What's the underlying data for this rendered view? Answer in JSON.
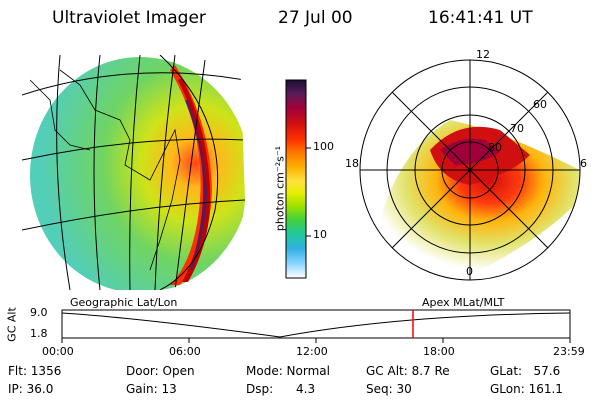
{
  "header": {
    "instrument": "Ultraviolet Imager",
    "date": "27 Jul 00",
    "time": "16:41:41 UT"
  },
  "colorbar": {
    "unit_label": "photon cm⁻²s⁻¹",
    "ticks": [
      "100",
      "10"
    ],
    "colors": [
      "#1a1033",
      "#5a1a5a",
      "#a0003a",
      "#d01010",
      "#ff3000",
      "#ff7a00",
      "#ffb000",
      "#ffe040",
      "#e6f000",
      "#9ae000",
      "#40d040",
      "#20c8a0",
      "#30b0e0",
      "#80d0ff",
      "#d8f0ff",
      "#ffffff"
    ]
  },
  "geographic_panel": {
    "label": "Geographic Lat/Lon"
  },
  "polar_panel": {
    "label": "Apex MLat/MLT",
    "mlt_labels": [
      "12",
      "18",
      "6",
      "0"
    ],
    "lat_labels": [
      "60",
      "70",
      "80"
    ]
  },
  "altitude_plot": {
    "axis_label": "GC Alt",
    "y_ticks": [
      "9.0",
      "1.8"
    ],
    "x_ticks": [
      "00:00",
      "06:00",
      "12:00",
      "18:00",
      "23:59"
    ],
    "current_time_marker": "16:41",
    "marker_color": "#ff0000"
  },
  "status": {
    "flt": "Flt: 1356",
    "ip": "IP: 36.0",
    "door": "Door: Open",
    "gain": "Gain: 13",
    "mode": "Mode: Normal",
    "dsp": "Dsp:      4.3",
    "gc_alt": "GC Alt: 8.7 Re",
    "seq": "Seq: 30",
    "glat": "GLat:   57.6",
    "glon": "GLon: 161.1"
  }
}
